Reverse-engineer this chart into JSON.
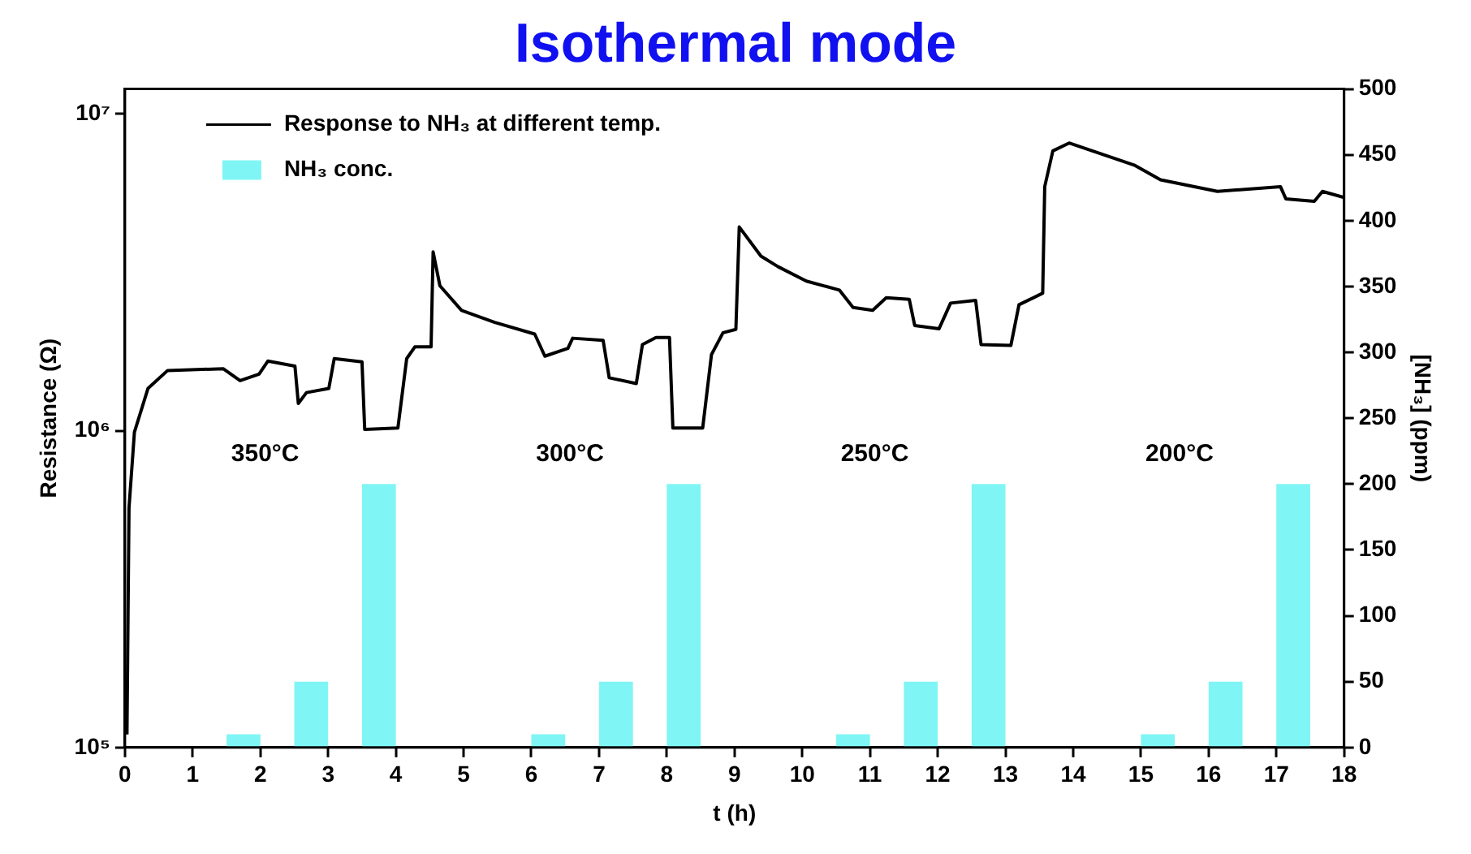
{
  "chart_data": {
    "type": "line",
    "title": "Isothermal mode",
    "xlabel": "t (h)",
    "ylabel": "Resistance (Ω)",
    "y2label": "[NH₃] (ppm)",
    "xlim": [
      0,
      18
    ],
    "xticks": [
      0,
      1,
      2,
      3,
      4,
      5,
      6,
      7,
      8,
      9,
      10,
      11,
      12,
      13,
      14,
      15,
      16,
      17,
      18
    ],
    "ylim": [
      100000,
      12000000
    ],
    "yticks": [
      {
        "value": 100000,
        "label": "10⁵"
      },
      {
        "value": 1000000,
        "label": "10⁶"
      },
      {
        "value": 10000000,
        "label": "10⁷"
      }
    ],
    "y2lim": [
      0,
      500
    ],
    "y2ticks": [
      0,
      50,
      100,
      150,
      200,
      250,
      300,
      350,
      400,
      450,
      500
    ],
    "log": "y",
    "grid": false,
    "legend": "top left",
    "marker": "none",
    "series": [
      {
        "name": "Response to NH₃ at different temp.",
        "color": "#000000",
        "x": [
          0.03,
          0.06,
          0.14,
          0.34,
          0.63,
          1.45,
          1.7,
          1.98,
          2.11,
          2.51,
          2.56,
          2.68,
          3.01,
          3.09,
          3.5,
          3.54,
          4.03,
          4.16,
          4.28,
          4.52,
          4.55,
          4.65,
          4.97,
          5.46,
          6.05,
          6.2,
          6.54,
          6.61,
          7.06,
          7.15,
          7.55,
          7.64,
          7.84,
          8.04,
          8.09,
          8.53,
          8.66,
          8.83,
          9.02,
          9.07,
          9.39,
          9.64,
          10.06,
          10.55,
          10.75,
          11.04,
          11.24,
          11.58,
          11.66,
          12.02,
          12.19,
          12.56,
          12.64,
          13.08,
          13.2,
          13.55,
          13.58,
          13.7,
          13.94,
          14.9,
          15.29,
          16.13,
          17.06,
          17.14,
          17.56,
          17.68,
          18
        ],
        "values": [
          110000,
          570000,
          990000,
          1360000,
          1550000,
          1570000,
          1440000,
          1510000,
          1660000,
          1600000,
          1220000,
          1320000,
          1360000,
          1690000,
          1650000,
          1010000,
          1020000,
          1690000,
          1840000,
          1840000,
          3670000,
          2870000,
          2400000,
          2200000,
          2020000,
          1720000,
          1820000,
          1960000,
          1930000,
          1470000,
          1410000,
          1870000,
          1970000,
          1970000,
          1020000,
          1020000,
          1740000,
          2040000,
          2090000,
          4400000,
          3560000,
          3300000,
          2970000,
          2780000,
          2450000,
          2400000,
          2630000,
          2600000,
          2150000,
          2100000,
          2530000,
          2580000,
          1870000,
          1860000,
          2500000,
          2720000,
          5900000,
          7650000,
          8100000,
          6900000,
          6200000,
          5700000,
          5900000,
          5400000,
          5300000,
          5700000,
          5450000
        ]
      },
      {
        "name": "NH₃ conc.",
        "type": "bar",
        "axis": "y2",
        "color": "#80f5f5",
        "x": [
          1.75,
          2.75,
          3.75,
          6.25,
          7.25,
          8.25,
          10.75,
          11.75,
          12.75,
          15.25,
          16.25,
          17.25
        ],
        "values": [
          10,
          50,
          200,
          10,
          50,
          200,
          10,
          50,
          200,
          10,
          50,
          200
        ]
      }
    ],
    "annotations": [
      "350°C",
      "300°C",
      "250°C",
      "200°C"
    ]
  }
}
